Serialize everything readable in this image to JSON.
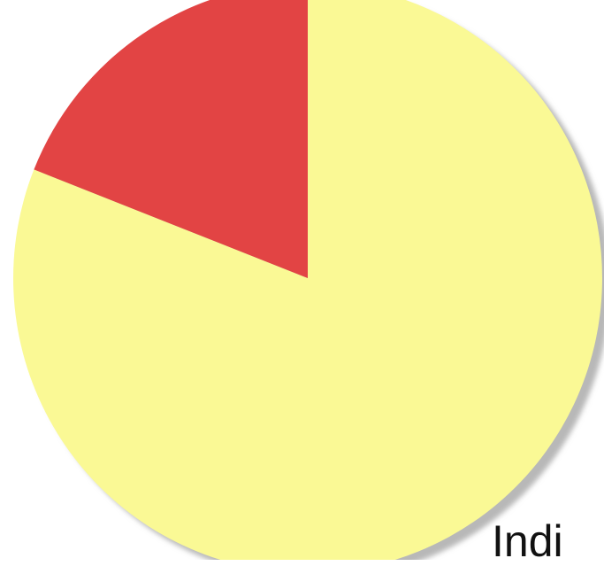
{
  "chart_data": {
    "type": "pie",
    "slices": [
      {
        "value": 0.81,
        "color": "#FAF995"
      },
      {
        "value": 0.19,
        "color": "#E24444"
      }
    ],
    "start_angle_deg": -90,
    "direction": "clockwise",
    "shadow": true,
    "visible_label": "Indi"
  }
}
